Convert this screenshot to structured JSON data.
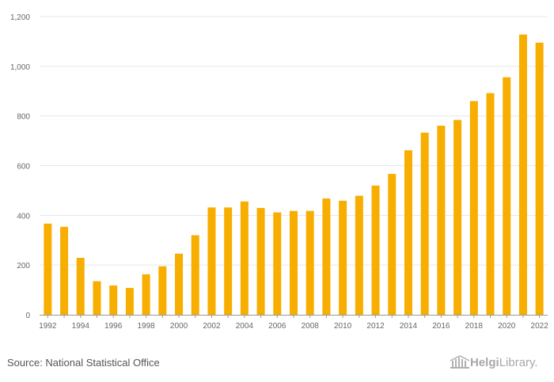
{
  "chart_data": {
    "type": "bar",
    "categories": [
      "1992",
      "1993",
      "1994",
      "1995",
      "1996",
      "1997",
      "1998",
      "1999",
      "2000",
      "2001",
      "2002",
      "2003",
      "2004",
      "2005",
      "2006",
      "2007",
      "2008",
      "2009",
      "2010",
      "2011",
      "2012",
      "2013",
      "2014",
      "2015",
      "2016",
      "2017",
      "2018",
      "2019",
      "2020",
      "2021",
      "2022"
    ],
    "values": [
      367,
      354,
      229,
      135,
      118,
      108,
      163,
      195,
      246,
      320,
      432,
      432,
      456,
      430,
      412,
      418,
      418,
      468,
      459,
      479,
      520,
      567,
      662,
      733,
      761,
      784,
      860,
      892,
      956,
      1128,
      1095
    ],
    "x_tick_labels": [
      "1992",
      "1994",
      "1996",
      "1998",
      "2000",
      "2002",
      "2004",
      "2006",
      "2008",
      "2010",
      "2012",
      "2014",
      "2016",
      "2018",
      "2020",
      "2022"
    ],
    "y_ticks": [
      "0",
      "200",
      "400",
      "600",
      "800",
      "1,000",
      "1,200"
    ],
    "y_tick_values": [
      0,
      200,
      400,
      600,
      800,
      1000,
      1200
    ],
    "ylim": [
      0,
      1200
    ],
    "grid": true,
    "bar_color": "#f7ae00",
    "title": "",
    "xlabel": "",
    "ylabel": ""
  },
  "footer": {
    "source": "Source: National Statistical Office",
    "logo_prefix": "Helgi",
    "logo_suffix": "Library."
  }
}
